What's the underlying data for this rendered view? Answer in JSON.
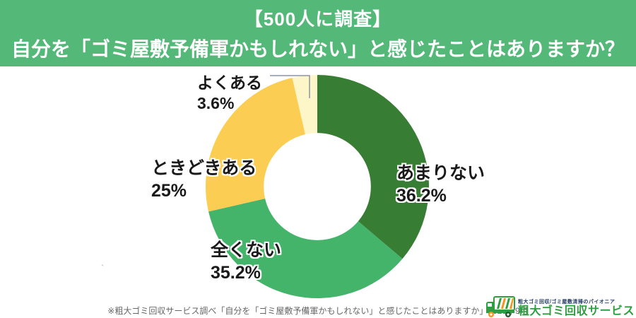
{
  "header": {
    "line1": "【500人に調査】",
    "line2": "自分を「ゴミ屋敷予備軍かもしれない」と感じたことはありますか？",
    "bg_color": "#54b878",
    "text_color": "#ffffff"
  },
  "chart_data": {
    "type": "pie",
    "subtype": "donut",
    "title": "【500人に調査】自分を「ゴミ屋敷予備軍かもしれない」と感じたことはありますか？",
    "start_angle_deg": 0,
    "direction": "clockwise",
    "donut_hole_ratio": 0.48,
    "segments": [
      {
        "label": "あまりない",
        "value": 36.2,
        "pct_label": "36.2%",
        "color": "#377d33"
      },
      {
        "label": "全くない",
        "value": 35.2,
        "pct_label": "35.2%",
        "color": "#44b46a"
      },
      {
        "label": "ときどきある",
        "value": 25,
        "pct_label": "25%",
        "color": "#fbce53"
      },
      {
        "label": "よくある",
        "value": 3.6,
        "pct_label": "3.6%",
        "color": "#fdf6c8"
      }
    ],
    "legend_position": "callout-labels",
    "grid": false
  },
  "artifact": {
    "stray_mark": "`"
  },
  "footer": {
    "note": "※粗大ゴミ回収サービス調べ「自分を「ゴミ屋敷予備軍かもしれない」と感じたことはありますか」2025年9月"
  },
  "logo": {
    "tagline": "粗大ゴミ回収/ゴミ屋敷清掃のパイオニア",
    "tagline_color": "#1f3864",
    "name": "粗大ゴミ回収サービス",
    "name_color": "#2f9e41",
    "truck_green": "#2f9e41",
    "truck_orange": "#f5941d"
  }
}
